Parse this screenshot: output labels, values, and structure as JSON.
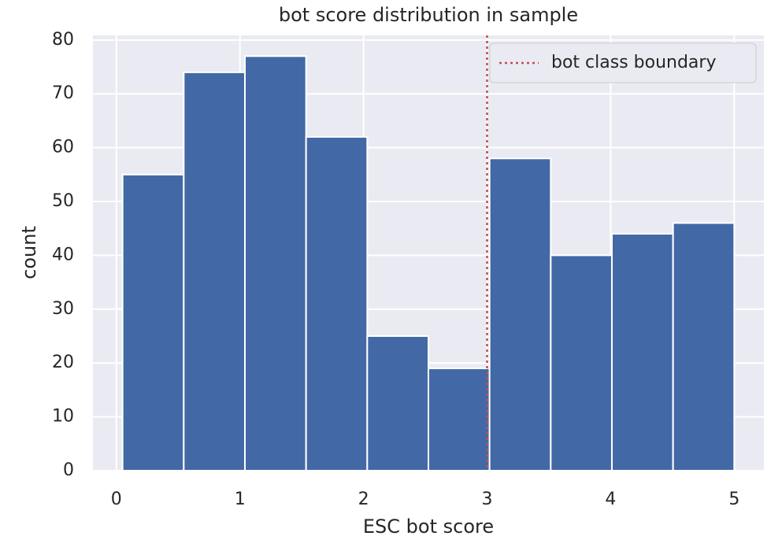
{
  "chart_data": {
    "type": "histogram",
    "title": "bot score distribution in sample",
    "xlabel": "ESC bot score",
    "ylabel": "count",
    "bins": [
      0.05,
      0.545,
      1.04,
      1.535,
      2.03,
      2.525,
      3.02,
      3.515,
      4.01,
      4.505,
      5.0
    ],
    "counts": [
      55,
      74,
      77,
      62,
      25,
      19,
      58,
      40,
      44,
      46
    ],
    "color": "#4269a5",
    "xlim": [
      -0.19,
      5.24
    ],
    "xticks": [
      0,
      1,
      2,
      3,
      4,
      5
    ],
    "ylim": [
      0,
      80.85
    ],
    "yticks": [
      0,
      10,
      20,
      30,
      40,
      50,
      60,
      70,
      80
    ],
    "grid": true,
    "reference_line": {
      "x": 3,
      "label": "bot class boundary",
      "color": "#c44e52",
      "style": "dotted"
    },
    "legend": "upper right"
  }
}
